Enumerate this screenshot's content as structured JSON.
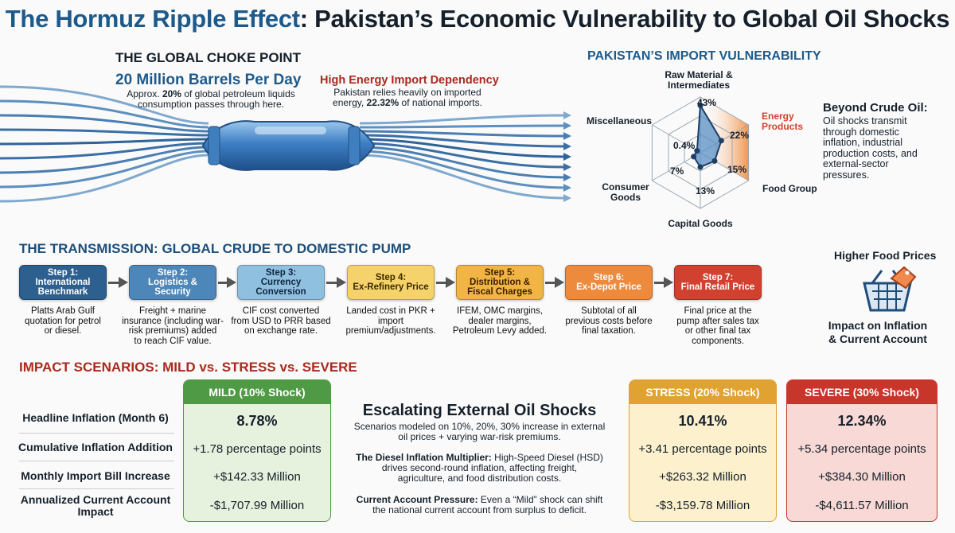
{
  "title": {
    "highlight": "The Hormuz Ripple Effect",
    "rest": ": Pakistan’s Economic Vulnerability to Global Oil Shocks"
  },
  "choke": {
    "heading": "THE GLOBAL CHOKE POINT",
    "stat": "20 Million Barrels Per Day",
    "desc_a": "Approx. ",
    "desc_b": "20%",
    "desc_c": " of global petroleum liquids",
    "desc_d": "consumption passes through here."
  },
  "dependency": {
    "heading": "High Energy Import Dependency",
    "desc_a": "Pakistan relies heavily on imported",
    "desc_b": "energy, ",
    "desc_c": "22.32%",
    "desc_d": " of national imports."
  },
  "imports": {
    "heading": "PAKISTAN’S IMPORT VULNERABILITY",
    "axes": [
      {
        "label": "Raw Material & Intermediates",
        "value": "43%"
      },
      {
        "label": "Energy Products",
        "value": "22%"
      },
      {
        "label": "Food Group",
        "value": "15%"
      },
      {
        "label": "Capital Goods",
        "value": "13%"
      },
      {
        "label": "Consumer Goods",
        "value": "7%"
      },
      {
        "label": "Miscellaneous",
        "value": "0.4%"
      }
    ],
    "beyond_title": "Beyond Crude Oil:",
    "beyond_text": [
      "Oil shocks transmit",
      "through domestic",
      "inflation, industrial",
      "production costs, and",
      "external-sector",
      "pressures."
    ]
  },
  "transmission": {
    "heading": "THE TRANSMISSION: GLOBAL CRUDE TO DOMESTIC PUMP",
    "steps": [
      {
        "label1": "Step 1:",
        "label2": "International",
        "label3": "Benchmark",
        "desc": [
          "Platts Arab Gulf",
          "quotation for petrol",
          "or diesel."
        ],
        "color": "#2d5f8f",
        "text": "#ffffff"
      },
      {
        "label1": "Step 2:",
        "label2": "Logistics &",
        "label3": "Security",
        "desc": [
          "Freight + marine",
          "insurance (including war-",
          "risk premiums) added",
          "to reach CIF value."
        ],
        "color": "#4d86b8",
        "text": "#ffffff"
      },
      {
        "label1": "Step 3:",
        "label2": "Currency",
        "label3": "Conversion",
        "desc": [
          "CIF cost converted",
          "from USD to PRR based",
          "on exchange rate."
        ],
        "color": "#8fc0e0",
        "text": "#10263d"
      },
      {
        "label1": "Step 4:",
        "label2": "Ex-Refinery Price",
        "label3": "",
        "desc": [
          "Landed cost in PKR +",
          "import",
          "premium/adjustments."
        ],
        "color": "#f6d36a",
        "text": "#3a2a00"
      },
      {
        "label1": "Step 5:",
        "label2": "Distribution &",
        "label3": "Fiscal Charges",
        "desc": [
          "IFEM, OMC margins,",
          "dealer margins,",
          "Petroleum Levy added."
        ],
        "color": "#f2b445",
        "text": "#3a2200"
      },
      {
        "label1": "Step 6:",
        "label2": "Ex-Depot Price",
        "label3": "",
        "desc": [
          "Subtotal of all",
          "previous costs before",
          "final taxation."
        ],
        "color": "#ee8a3c",
        "text": "#ffffff"
      },
      {
        "label1": "Step 7:",
        "label2": "Final Retail Price",
        "label3": "",
        "desc": [
          "Final price at the",
          "pump after sales tax",
          "or other final tax",
          "components."
        ],
        "color": "#d2412f",
        "text": "#ffffff"
      }
    ]
  },
  "food": {
    "title": "Higher Food Prices",
    "impact1": "Impact on Inflation",
    "impact2": "& Current Account"
  },
  "scenarios": {
    "heading": "IMPACT SCENARIOS: MILD vs. STRESS vs. SEVERE",
    "row_labels": [
      {
        "a": "Headline Inflation (Month 6)",
        "b": ""
      },
      {
        "a": "Cumulative Inflation Addition",
        "b": ""
      },
      {
        "a": "Monthly Import Bill Increase",
        "b": ""
      },
      {
        "a": "Annualized Current Account",
        "b": "Impact"
      }
    ],
    "mild": {
      "header": "MILD (10% Shock)",
      "color": "#4f9a44",
      "bg": "#e6f2dd",
      "values": [
        "8.78%",
        "+1.78 percentage points",
        "+$142.33 Million",
        "-$1,707.99 Million"
      ]
    },
    "stress": {
      "header": "STRESS (20% Shock)",
      "color": "#e0a230",
      "bg": "#fdf1cd",
      "values": [
        "10.41%",
        "+3.41 percentage points",
        "+$263.32 Million",
        "-$3,159.78 Million"
      ]
    },
    "severe": {
      "header": "SEVERE (30% Shock)",
      "color": "#c8352a",
      "bg": "#f8d9d5",
      "values": [
        "12.34%",
        "+5.34 percentage points",
        "+$384.30 Million",
        "-$4,611.57 Million"
      ]
    },
    "middle": {
      "title": "Escalating External Oil Shocks",
      "intro": [
        "Scenarios modeled on 10%, 20%, 30% increase in external",
        "oil prices + varying war-risk premiums."
      ],
      "diesel_b": "The Diesel Inflation Multiplier:",
      "diesel_t": [
        " High-Speed Diesel (HSD)",
        "drives second-round inflation, affecting freight,",
        "agriculture, and food distribution costs."
      ],
      "ca_b": "Current Account Pressure:",
      "ca_t": [
        " Even a “Mild” shock can shift",
        "the national current account from surplus to deficit."
      ]
    }
  }
}
